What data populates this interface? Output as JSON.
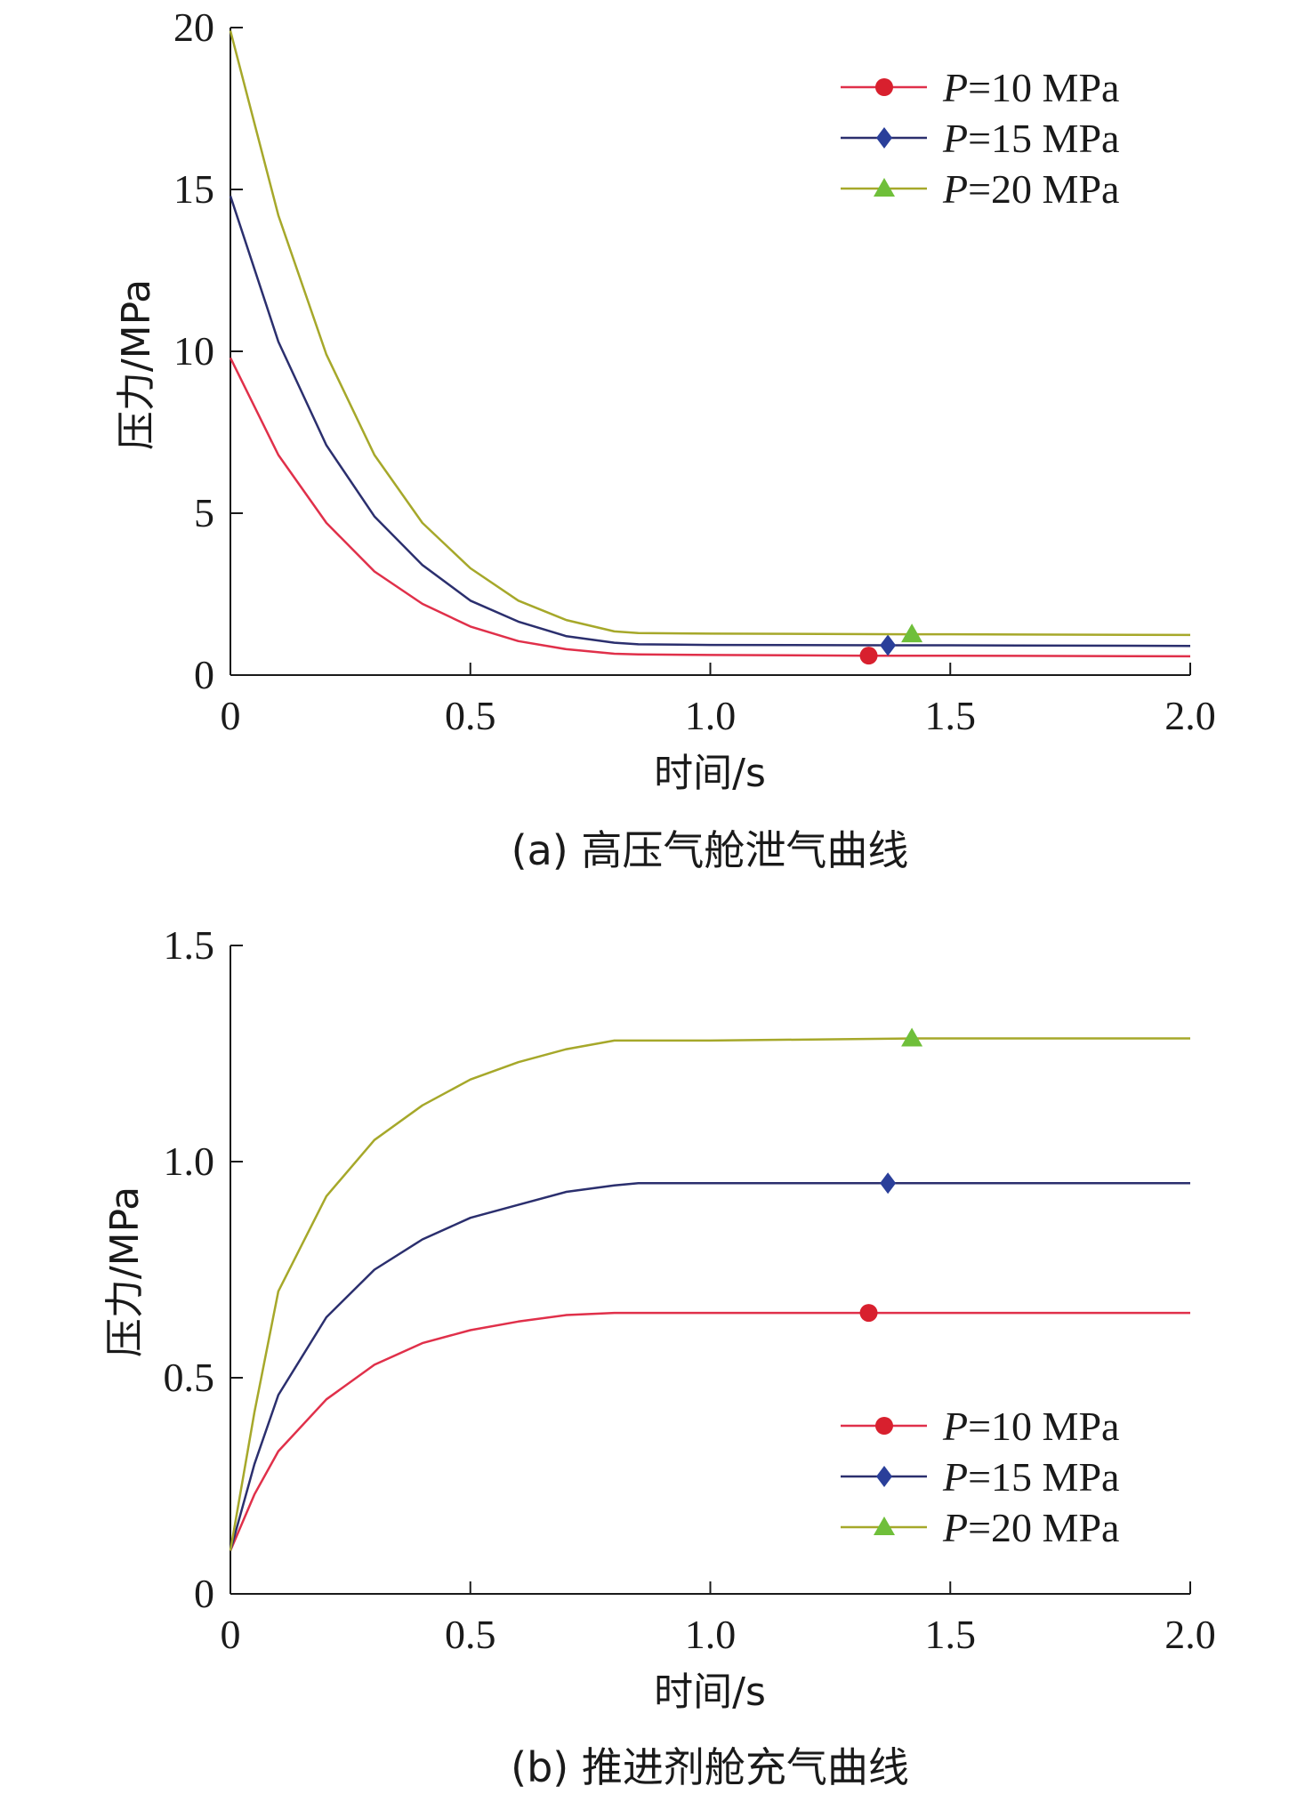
{
  "chart_data": [
    {
      "type": "line",
      "xlabel": "时间/s",
      "ylabel": "压力/MPa",
      "caption": "(a) 高压气舱泄气曲线",
      "xlim": [
        0,
        2.0
      ],
      "ylim": [
        0,
        20
      ],
      "x_ticks": [
        "0",
        "0.5",
        "1.0",
        "1.5",
        "2.0"
      ],
      "y_ticks": [
        "0",
        "5",
        "10",
        "15",
        "20"
      ],
      "x_tick_values": [
        0,
        0.5,
        1.0,
        1.5,
        2.0
      ],
      "y_tick_values": [
        0,
        5,
        10,
        15,
        20
      ],
      "legend_position": "top-right",
      "grid": false,
      "series": [
        {
          "name_prefix": "P",
          "name_suffix": "=10 MPa",
          "color": "#e0304a",
          "marker": "circle",
          "marker_color": "#d8202e",
          "x": [
            0,
            0.1,
            0.2,
            0.3,
            0.4,
            0.5,
            0.6,
            0.7,
            0.8,
            0.85,
            1.0,
            1.33,
            1.5,
            2.0
          ],
          "y": [
            9.8,
            6.8,
            4.7,
            3.2,
            2.2,
            1.5,
            1.05,
            0.8,
            0.66,
            0.64,
            0.62,
            0.6,
            0.6,
            0.58
          ],
          "marker_x": 1.33,
          "marker_y": 0.6
        },
        {
          "name_prefix": "P",
          "name_suffix": "=15 MPa",
          "color": "#2b2f6e",
          "marker": "diamond",
          "marker_color": "#2a3f9a",
          "x": [
            0,
            0.1,
            0.2,
            0.3,
            0.4,
            0.5,
            0.6,
            0.7,
            0.8,
            0.85,
            1.0,
            1.37,
            1.5,
            2.0
          ],
          "y": [
            14.8,
            10.3,
            7.1,
            4.9,
            3.4,
            2.3,
            1.65,
            1.2,
            1.0,
            0.95,
            0.93,
            0.92,
            0.92,
            0.9
          ],
          "marker_x": 1.37,
          "marker_y": 0.92
        },
        {
          "name_prefix": "P",
          "name_suffix": "=20 MPa",
          "color": "#a6a82a",
          "marker": "triangle",
          "marker_color": "#6fbf3a",
          "x": [
            0,
            0.1,
            0.2,
            0.3,
            0.4,
            0.5,
            0.6,
            0.7,
            0.8,
            0.85,
            1.0,
            1.42,
            1.5,
            2.0
          ],
          "y": [
            19.9,
            14.2,
            9.9,
            6.8,
            4.7,
            3.3,
            2.3,
            1.7,
            1.35,
            1.3,
            1.28,
            1.26,
            1.26,
            1.24
          ],
          "marker_x": 1.42,
          "marker_y": 1.26
        }
      ]
    },
    {
      "type": "line",
      "xlabel": "时间/s",
      "ylabel": "压力/MPa",
      "caption": "(b) 推进剂舱充气曲线",
      "xlim": [
        0,
        2.0
      ],
      "ylim": [
        0,
        1.5
      ],
      "x_ticks": [
        "0",
        "0.5",
        "1.0",
        "1.5",
        "2.0"
      ],
      "y_ticks": [
        "0",
        "0.5",
        "1.0",
        "1.5"
      ],
      "x_tick_values": [
        0,
        0.5,
        1.0,
        1.5,
        2.0
      ],
      "y_tick_values": [
        0,
        0.5,
        1.0,
        1.5
      ],
      "legend_position": "bottom-right",
      "grid": false,
      "series": [
        {
          "name_prefix": "P",
          "name_suffix": "=10 MPa",
          "color": "#e0304a",
          "marker": "circle",
          "marker_color": "#d8202e",
          "x": [
            0,
            0.05,
            0.1,
            0.2,
            0.3,
            0.4,
            0.5,
            0.6,
            0.7,
            0.8,
            0.85,
            1.0,
            1.33,
            1.5,
            2.0
          ],
          "y": [
            0.1,
            0.23,
            0.33,
            0.45,
            0.53,
            0.58,
            0.61,
            0.63,
            0.645,
            0.65,
            0.65,
            0.65,
            0.65,
            0.65,
            0.65
          ],
          "marker_x": 1.33,
          "marker_y": 0.65
        },
        {
          "name_prefix": "P",
          "name_suffix": "=15 MPa",
          "color": "#2b2f6e",
          "marker": "diamond",
          "marker_color": "#2a3f9a",
          "x": [
            0,
            0.05,
            0.1,
            0.2,
            0.3,
            0.4,
            0.5,
            0.6,
            0.7,
            0.8,
            0.85,
            1.0,
            1.37,
            1.5,
            2.0
          ],
          "y": [
            0.1,
            0.3,
            0.46,
            0.64,
            0.75,
            0.82,
            0.87,
            0.9,
            0.93,
            0.945,
            0.95,
            0.95,
            0.95,
            0.95,
            0.95
          ],
          "marker_x": 1.37,
          "marker_y": 0.95
        },
        {
          "name_prefix": "P",
          "name_suffix": "=20 MPa",
          "color": "#a6a82a",
          "marker": "triangle",
          "marker_color": "#6fbf3a",
          "x": [
            0,
            0.05,
            0.1,
            0.2,
            0.3,
            0.4,
            0.5,
            0.6,
            0.7,
            0.8,
            0.85,
            1.0,
            1.42,
            1.5,
            2.0
          ],
          "y": [
            0.1,
            0.42,
            0.7,
            0.92,
            1.05,
            1.13,
            1.19,
            1.23,
            1.26,
            1.28,
            1.28,
            1.28,
            1.285,
            1.285,
            1.285
          ],
          "marker_x": 1.42,
          "marker_y": 1.285
        }
      ]
    }
  ]
}
